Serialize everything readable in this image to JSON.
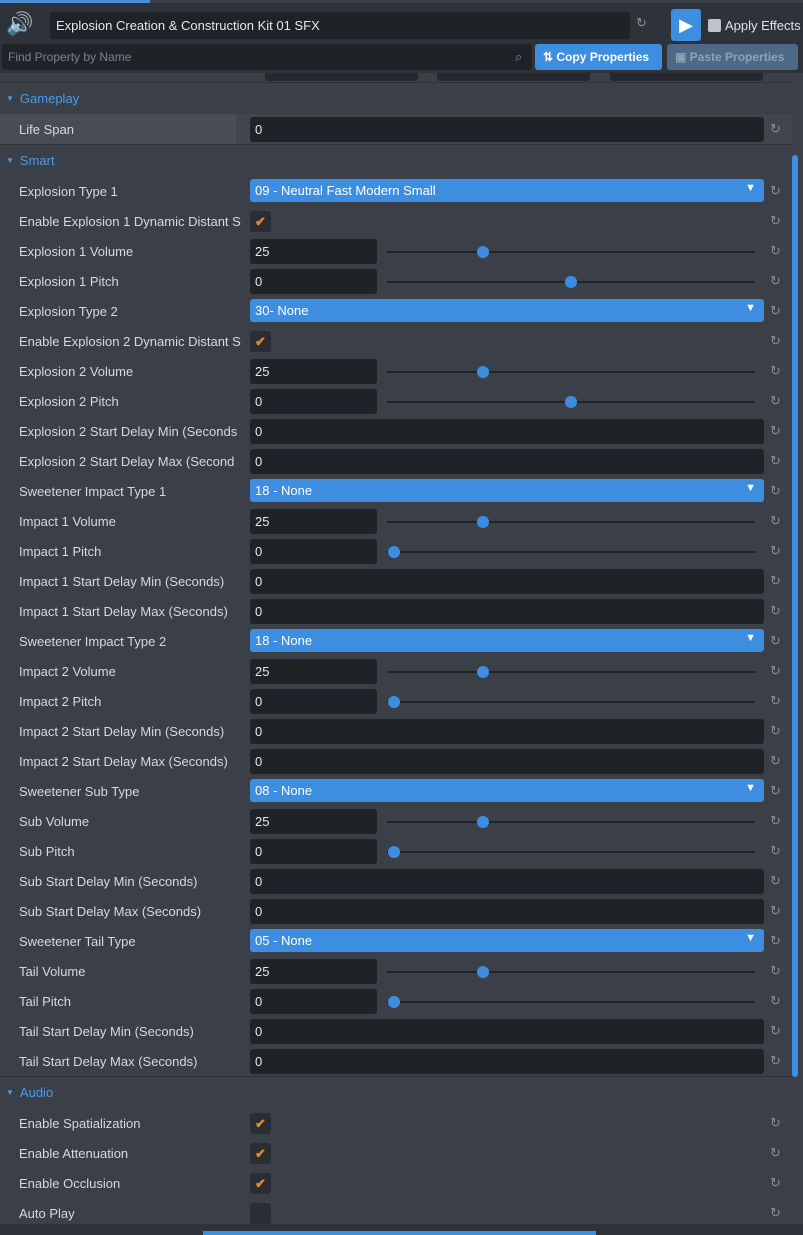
{
  "header": {
    "title": "Explosion Creation & Construction Kit 01 SFX",
    "apply_effects": "Apply Effects",
    "apply_checked": false
  },
  "search": {
    "placeholder": "Find Property by Name",
    "copy": "Copy Properties",
    "paste": "Paste Properties"
  },
  "sections": [
    {
      "title": "Gameplay",
      "rows": [
        {
          "label": "Life Span",
          "type": "number",
          "value": "0"
        }
      ]
    },
    {
      "title": "Smart",
      "rows": [
        {
          "label": "Explosion Type 1",
          "type": "dropdown",
          "value": "09 - Neutral Fast Modern Small"
        },
        {
          "label": "Enable Explosion 1 Dynamic Distant S",
          "type": "check",
          "value": true
        },
        {
          "label": "Explosion 1 Volume",
          "type": "slider",
          "value": "25",
          "fraction": 0.26
        },
        {
          "label": "Explosion 1 Pitch",
          "type": "slider",
          "value": "0",
          "fraction": 0.5
        },
        {
          "label": "Explosion Type 2",
          "type": "dropdown",
          "value": "30- None"
        },
        {
          "label": "Enable Explosion 2 Dynamic Distant S",
          "type": "check",
          "value": true
        },
        {
          "label": "Explosion 2 Volume",
          "type": "slider",
          "value": "25",
          "fraction": 0.26
        },
        {
          "label": "Explosion 2 Pitch",
          "type": "slider",
          "value": "0",
          "fraction": 0.5
        },
        {
          "label": "Explosion 2 Start Delay Min (Seconds",
          "type": "number",
          "value": "0"
        },
        {
          "label": "Explosion 2 Start Delay Max (Second",
          "type": "number",
          "value": "0"
        },
        {
          "label": "Sweetener Impact Type 1",
          "type": "dropdown",
          "value": "18 - None"
        },
        {
          "label": "Impact 1 Volume",
          "type": "slider",
          "value": "25",
          "fraction": 0.26
        },
        {
          "label": "Impact 1 Pitch",
          "type": "slider",
          "value": "0",
          "fraction": 0.02
        },
        {
          "label": "Impact 1 Start Delay Min (Seconds)",
          "type": "number",
          "value": "0"
        },
        {
          "label": "Impact 1 Start Delay Max (Seconds)",
          "type": "number",
          "value": "0"
        },
        {
          "label": "Sweetener Impact Type 2",
          "type": "dropdown",
          "value": "18 - None"
        },
        {
          "label": "Impact 2 Volume",
          "type": "slider",
          "value": "25",
          "fraction": 0.26
        },
        {
          "label": "Impact 2 Pitch",
          "type": "slider",
          "value": "0",
          "fraction": 0.02
        },
        {
          "label": "Impact 2 Start Delay Min (Seconds)",
          "type": "number",
          "value": "0"
        },
        {
          "label": "Impact 2 Start Delay Max (Seconds)",
          "type": "number",
          "value": "0"
        },
        {
          "label": "Sweetener Sub Type",
          "type": "dropdown",
          "value": "08 - None"
        },
        {
          "label": "Sub Volume",
          "type": "slider",
          "value": "25",
          "fraction": 0.26
        },
        {
          "label": "Sub Pitch",
          "type": "slider",
          "value": "0",
          "fraction": 0.02
        },
        {
          "label": "Sub Start Delay Min (Seconds)",
          "type": "number",
          "value": "0"
        },
        {
          "label": "Sub Start Delay Max (Seconds)",
          "type": "number",
          "value": "0"
        },
        {
          "label": "Sweetener Tail Type",
          "type": "dropdown",
          "value": "05 - None"
        },
        {
          "label": "Tail Volume",
          "type": "slider",
          "value": "25",
          "fraction": 0.26
        },
        {
          "label": "Tail Pitch",
          "type": "slider",
          "value": "0",
          "fraction": 0.02
        },
        {
          "label": "Tail Start Delay Min (Seconds)",
          "type": "number",
          "value": "0"
        },
        {
          "label": "Tail Start Delay Max (Seconds)",
          "type": "number",
          "value": "0"
        }
      ]
    },
    {
      "title": "Audio",
      "rows": [
        {
          "label": "Enable Spatialization",
          "type": "check",
          "value": true
        },
        {
          "label": "Enable Attenuation",
          "type": "check",
          "value": true
        },
        {
          "label": "Enable Occlusion",
          "type": "check",
          "value": true
        },
        {
          "label": "Auto Play",
          "type": "check",
          "value": false
        }
      ]
    }
  ]
}
